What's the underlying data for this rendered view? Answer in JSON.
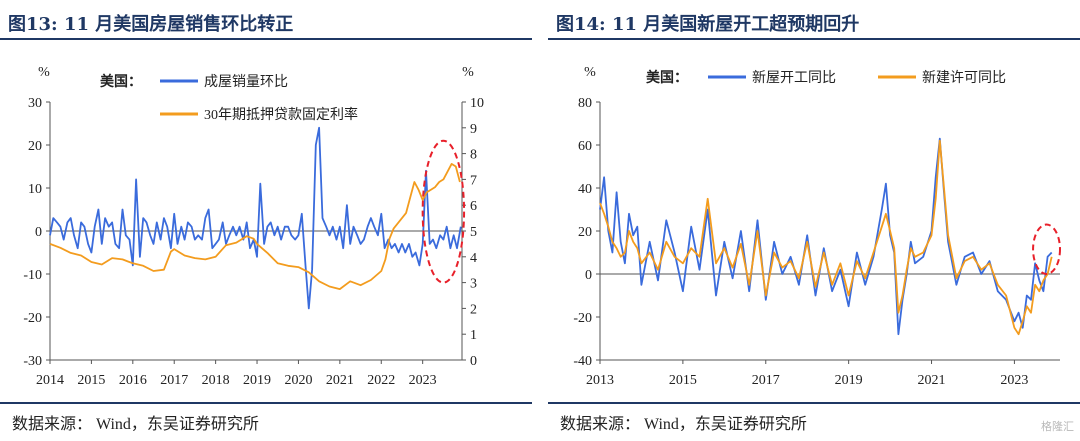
{
  "left": {
    "title": "图13:  11 月美国房屋销售环比转正",
    "source": "数据来源： Wind，东吴证券研究所",
    "chart_data": {
      "type": "line",
      "y_unit_left": "%",
      "y_unit_right": "%",
      "legend_prefix": "美国：",
      "ylim_left": [
        -30,
        30
      ],
      "yticks_left": [
        "-30",
        "-20",
        "-10",
        "0",
        "10",
        "20",
        "30"
      ],
      "ylim_right": [
        0,
        10
      ],
      "yticks_right": [
        "0",
        "1",
        "2",
        "3",
        "4",
        "5",
        "6",
        "7",
        "8",
        "9",
        "10"
      ],
      "xlim": [
        2014,
        2023.95
      ],
      "xticks": [
        "2014",
        "2015",
        "2016",
        "2017",
        "2018",
        "2019",
        "2020",
        "2021",
        "2022",
        "2023"
      ],
      "grid": false,
      "highlight_ellipse": {
        "x_from": 2023.0,
        "x_to": 2024.0,
        "y_right_from": 3.0,
        "y_right_to": 8.5,
        "color": "#e8202a"
      },
      "series": [
        {
          "name": "成屋销量环比",
          "axis": "left",
          "color": "#3a6bdc",
          "x": [
            2014.0,
            2014.08,
            2014.17,
            2014.25,
            2014.33,
            2014.42,
            2014.5,
            2014.58,
            2014.67,
            2014.75,
            2014.83,
            2014.92,
            2015.0,
            2015.08,
            2015.17,
            2015.25,
            2015.33,
            2015.42,
            2015.5,
            2015.58,
            2015.67,
            2015.75,
            2015.83,
            2015.92,
            2016.0,
            2016.08,
            2016.17,
            2016.25,
            2016.33,
            2016.42,
            2016.5,
            2016.58,
            2016.67,
            2016.75,
            2016.83,
            2016.92,
            2017.0,
            2017.08,
            2017.17,
            2017.25,
            2017.33,
            2017.42,
            2017.5,
            2017.58,
            2017.67,
            2017.75,
            2017.83,
            2017.92,
            2018.0,
            2018.08,
            2018.17,
            2018.25,
            2018.33,
            2018.42,
            2018.5,
            2018.58,
            2018.67,
            2018.75,
            2018.83,
            2018.92,
            2019.0,
            2019.08,
            2019.17,
            2019.25,
            2019.33,
            2019.42,
            2019.5,
            2019.58,
            2019.67,
            2019.75,
            2019.83,
            2019.92,
            2020.0,
            2020.08,
            2020.17,
            2020.25,
            2020.33,
            2020.42,
            2020.5,
            2020.58,
            2020.67,
            2020.75,
            2020.83,
            2020.92,
            2021.0,
            2021.08,
            2021.17,
            2021.25,
            2021.33,
            2021.42,
            2021.5,
            2021.58,
            2021.67,
            2021.75,
            2021.83,
            2021.92,
            2022.0,
            2022.08,
            2022.17,
            2022.25,
            2022.33,
            2022.42,
            2022.5,
            2022.58,
            2022.67,
            2022.75,
            2022.83,
            2022.92,
            2023.0,
            2023.08,
            2023.17,
            2023.25,
            2023.33,
            2023.42,
            2023.5,
            2023.58,
            2023.67,
            2023.75,
            2023.83,
            2023.92
          ],
          "values": [
            -1,
            3,
            2,
            1,
            -2,
            2,
            3,
            -1,
            -4,
            2,
            1,
            -3,
            -5,
            1,
            5,
            -3,
            3,
            1,
            2,
            -3,
            -4,
            5,
            -1,
            -2,
            -8,
            12,
            -6,
            3,
            2,
            -1,
            -3,
            2,
            -2,
            3,
            1,
            -4,
            4,
            -3,
            1,
            -2,
            2,
            1,
            -2,
            -1,
            -2,
            3,
            5,
            -4,
            -3,
            -2,
            2,
            -3,
            -1,
            1,
            -1,
            1,
            -2,
            2,
            -4,
            -2,
            -6,
            11,
            -3,
            1,
            2,
            -1,
            1,
            -2,
            1,
            1,
            -1,
            -2,
            -1,
            4,
            -8,
            -18,
            -9,
            20,
            24,
            3,
            1,
            -1,
            1,
            -2,
            1,
            -4,
            6,
            -3,
            1,
            -1,
            -3,
            -2,
            1,
            3,
            1,
            -1,
            4,
            -4,
            -2,
            -4,
            -3,
            -5,
            -3,
            -5,
            -3,
            -6,
            -5,
            -8,
            -3,
            14,
            -3,
            -2,
            -4,
            -1,
            -2,
            1,
            -4,
            -1,
            -4,
            1
          ]
        },
        {
          "name": "30年期抵押贷款固定利率",
          "axis": "right",
          "color": "#f39c1e",
          "x": [
            2014.0,
            2014.25,
            2014.5,
            2014.75,
            2015.0,
            2015.25,
            2015.5,
            2015.75,
            2016.0,
            2016.25,
            2016.5,
            2016.75,
            2016.92,
            2017.0,
            2017.25,
            2017.5,
            2017.75,
            2018.0,
            2018.25,
            2018.5,
            2018.75,
            2018.92,
            2019.0,
            2019.25,
            2019.5,
            2019.75,
            2020.0,
            2020.25,
            2020.5,
            2020.75,
            2021.0,
            2021.25,
            2021.5,
            2021.75,
            2022.0,
            2022.1,
            2022.2,
            2022.3,
            2022.4,
            2022.5,
            2022.6,
            2022.7,
            2022.8,
            2022.9,
            2023.0,
            2023.1,
            2023.2,
            2023.3,
            2023.4,
            2023.5,
            2023.6,
            2023.7,
            2023.8,
            2023.9
          ],
          "values": [
            4.5,
            4.35,
            4.15,
            4.05,
            3.8,
            3.7,
            3.95,
            3.9,
            3.75,
            3.65,
            3.45,
            3.5,
            4.2,
            4.3,
            4.05,
            3.95,
            3.9,
            4.0,
            4.45,
            4.55,
            4.8,
            4.7,
            4.5,
            4.15,
            3.75,
            3.65,
            3.6,
            3.4,
            3.05,
            2.85,
            2.75,
            3.05,
            2.9,
            3.1,
            3.45,
            3.9,
            4.7,
            5.1,
            5.3,
            5.5,
            5.7,
            6.3,
            6.9,
            6.6,
            6.2,
            6.5,
            6.6,
            6.7,
            6.9,
            7.0,
            7.3,
            7.6,
            7.5,
            6.9
          ]
        }
      ]
    }
  },
  "right": {
    "title": "图14:  11 月美国新屋开工超预期回升",
    "source": "数据来源： Wind，东吴证券研究所",
    "chart_data": {
      "type": "line",
      "y_unit": "%",
      "legend_prefix": "美国：",
      "ylim": [
        -40,
        80
      ],
      "yticks": [
        "-40",
        "-20",
        "0",
        "20",
        "40",
        "60",
        "80"
      ],
      "xlim": [
        2013,
        2024.1
      ],
      "xticks": [
        "2013",
        "2015",
        "2017",
        "2019",
        "2021",
        "2023"
      ],
      "grid": false,
      "highlight_ellipse": {
        "x_from": 2023.45,
        "x_to": 2024.1,
        "y_from": 0,
        "y_to": 23,
        "color": "#e8202a"
      },
      "series": [
        {
          "name": "新屋开工同比",
          "color": "#3a6bdc",
          "x": [
            2013.0,
            2013.1,
            2013.2,
            2013.3,
            2013.4,
            2013.5,
            2013.6,
            2013.7,
            2013.8,
            2013.9,
            2014.0,
            2014.2,
            2014.4,
            2014.6,
            2014.8,
            2015.0,
            2015.2,
            2015.4,
            2015.6,
            2015.8,
            2016.0,
            2016.2,
            2016.4,
            2016.6,
            2016.8,
            2017.0,
            2017.2,
            2017.4,
            2017.6,
            2017.8,
            2018.0,
            2018.2,
            2018.4,
            2018.6,
            2018.8,
            2019.0,
            2019.2,
            2019.4,
            2019.6,
            2019.8,
            2019.9,
            2020.0,
            2020.1,
            2020.2,
            2020.3,
            2020.4,
            2020.5,
            2020.6,
            2020.8,
            2021.0,
            2021.1,
            2021.2,
            2021.3,
            2021.4,
            2021.5,
            2021.6,
            2021.8,
            2022.0,
            2022.2,
            2022.4,
            2022.6,
            2022.8,
            2023.0,
            2023.1,
            2023.2,
            2023.3,
            2023.4,
            2023.5,
            2023.6,
            2023.7,
            2023.8,
            2023.9
          ],
          "values": [
            30,
            45,
            20,
            10,
            38,
            15,
            5,
            28,
            18,
            22,
            -5,
            15,
            -3,
            25,
            10,
            -8,
            22,
            2,
            30,
            -10,
            15,
            -2,
            20,
            -8,
            25,
            -12,
            15,
            0,
            8,
            -5,
            18,
            -10,
            12,
            -8,
            2,
            -15,
            10,
            -5,
            8,
            30,
            42,
            18,
            10,
            -28,
            -12,
            0,
            15,
            5,
            8,
            20,
            45,
            63,
            38,
            15,
            5,
            -5,
            8,
            10,
            0,
            6,
            -8,
            -12,
            -22,
            -18,
            -25,
            -10,
            -12,
            5,
            -3,
            -8,
            8,
            10
          ]
        },
        {
          "name": "新建许可同比",
          "color": "#f39c1e",
          "x": [
            2013.0,
            2013.1,
            2013.2,
            2013.3,
            2013.4,
            2013.5,
            2013.6,
            2013.7,
            2013.8,
            2013.9,
            2014.0,
            2014.2,
            2014.4,
            2014.6,
            2014.8,
            2015.0,
            2015.2,
            2015.4,
            2015.6,
            2015.8,
            2016.0,
            2016.2,
            2016.4,
            2016.6,
            2016.8,
            2017.0,
            2017.2,
            2017.4,
            2017.6,
            2017.8,
            2018.0,
            2018.2,
            2018.4,
            2018.6,
            2018.8,
            2019.0,
            2019.2,
            2019.4,
            2019.6,
            2019.8,
            2019.9,
            2020.0,
            2020.1,
            2020.2,
            2020.3,
            2020.4,
            2020.5,
            2020.6,
            2020.8,
            2021.0,
            2021.1,
            2021.2,
            2021.3,
            2021.4,
            2021.5,
            2021.6,
            2021.8,
            2022.0,
            2022.2,
            2022.4,
            2022.6,
            2022.8,
            2023.0,
            2023.1,
            2023.2,
            2023.3,
            2023.4,
            2023.5,
            2023.6,
            2023.7,
            2023.8,
            2023.9
          ],
          "values": [
            33,
            28,
            22,
            15,
            12,
            8,
            10,
            20,
            15,
            12,
            5,
            10,
            2,
            15,
            8,
            5,
            12,
            8,
            35,
            5,
            12,
            3,
            14,
            -5,
            20,
            -10,
            10,
            3,
            6,
            -2,
            15,
            -6,
            10,
            -5,
            5,
            -10,
            6,
            -2,
            10,
            22,
            28,
            20,
            12,
            -18,
            -10,
            2,
            12,
            8,
            10,
            18,
            35,
            62,
            40,
            18,
            8,
            -2,
            6,
            8,
            2,
            5,
            -5,
            -10,
            -25,
            -28,
            -22,
            -15,
            -18,
            -5,
            -8,
            -3,
            0,
            8
          ]
        }
      ]
    }
  },
  "watermark": "格隆汇"
}
